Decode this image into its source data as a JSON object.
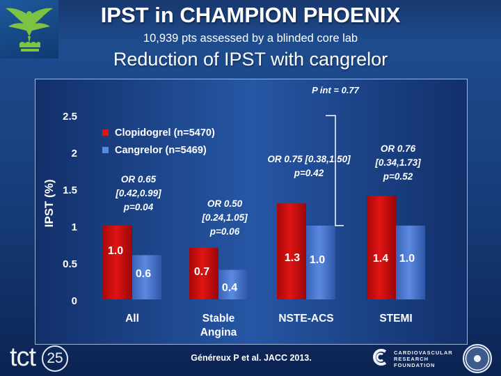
{
  "header": {
    "title": "IPST in CHAMPION PHOENIX",
    "subtitle": "10,939 pts assessed by a blinded core lab",
    "heading": "Reduction of IPST with cangrelor"
  },
  "footer": {
    "citation": "Généreux P et al. JACC 2013.",
    "tct_text": "tct",
    "tct_number": "25",
    "org_lines": [
      "CARDIOVASCULAR",
      "RESEARCH",
      "FOUNDATION"
    ]
  },
  "icons": {
    "phoenix": "phoenix-logo-icon",
    "crf": "crf-logo-icon",
    "seal": "seal-icon"
  },
  "colors": {
    "clopidogrel": "#e01414",
    "cangrelor": "#5a8ae0",
    "background": "#1e4c8e",
    "panel": "#2656a4",
    "logo_green": "#7ec242"
  },
  "chart_data": {
    "type": "bar",
    "title": "Reduction of IPST with cangrelor",
    "ylabel": "IPST (%)",
    "xlabel": "",
    "ylim": [
      0,
      2.5
    ],
    "y_ticks": [
      "0",
      "0.5",
      "1",
      "1.5",
      "2",
      "2.5"
    ],
    "grid": false,
    "legend_position": "top-left",
    "categories": [
      "All",
      "Stable Angina",
      "NSTE-ACS",
      "STEMI"
    ],
    "category_labels": [
      [
        "All"
      ],
      [
        "Stable",
        "Angina"
      ],
      [
        "NSTE-ACS"
      ],
      [
        "STEMI"
      ]
    ],
    "series": [
      {
        "name": "Clopidogrel (n=5470)",
        "color": "#e01414",
        "values": [
          1.0,
          0.7,
          1.3,
          1.4
        ],
        "labels": [
          "1.0",
          "0.7",
          "1.3",
          "1.4"
        ]
      },
      {
        "name": "Cangrelor (n=5469)",
        "color": "#5a8ae0",
        "values": [
          0.6,
          0.4,
          1.0,
          1.0
        ],
        "labels": [
          "0.6",
          "0.4",
          "1.0",
          "1.0"
        ]
      }
    ],
    "annotations": [
      {
        "category": "All",
        "lines": [
          "OR 0.65",
          "[0.42,0.99]",
          "p=0.04"
        ]
      },
      {
        "category": "Stable Angina",
        "lines": [
          "OR 0.50",
          "[0.24,1.05]",
          "p=0.06"
        ]
      },
      {
        "category": "NSTE-ACS",
        "lines": [
          "OR 0.75 [0.38,1.50]",
          "p=0.42"
        ]
      },
      {
        "category": "STEMI",
        "lines": [
          "OR 0.76",
          "[0.34,1.73]",
          "p=0.52"
        ]
      }
    ],
    "interaction": "P int = 0.77"
  }
}
